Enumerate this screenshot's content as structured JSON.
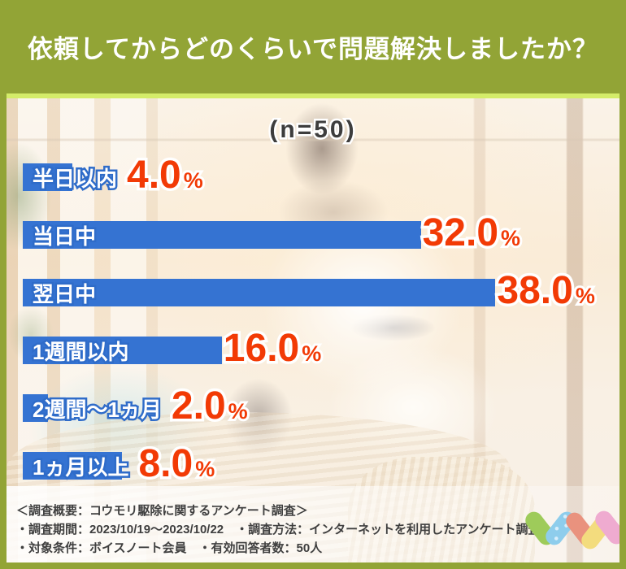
{
  "header": {
    "title": "依頼してからどのくらいで問題解決しましたか？"
  },
  "chart_data": {
    "type": "bar",
    "orientation": "horizontal",
    "title": "依頼してからどのくらいで問題解決しましたか？",
    "sample_size_label": "(n=50)",
    "n": 50,
    "categories": [
      "半日以内",
      "当日中",
      "翌日中",
      "1週間以内",
      "2週間〜1ヵ月",
      "1ヵ月以上"
    ],
    "values": [
      4.0,
      32.0,
      38.0,
      16.0,
      2.0,
      8.0
    ],
    "value_labels": [
      "4.0",
      "32.0",
      "38.0",
      "16.0",
      "2.0",
      "8.0"
    ],
    "unit": "%",
    "xlim": [
      0,
      40
    ],
    "grid": false,
    "legend": "none",
    "bar_color": "#3573d2",
    "value_color": "#f23a05",
    "label_text_color": "#ffffff"
  },
  "footer": {
    "line1": "＜調査概要：コウモリ駆除に関するアンケート調査＞",
    "line2": "・調査期間：2023/10/19～2023/10/22　・調査方法：インターネットを利用したアンケート調査",
    "line3": "・対象条件：ボイスノート会員　・有効回答者数：50人"
  },
  "logo": {
    "name": "voicenote-checkmarks-logo",
    "stroke_colors": [
      "#9ecb5a",
      "#8ecdec",
      "#e9927e",
      "#f3dc7e",
      "#efabd0"
    ]
  },
  "colors": {
    "frame_green": "#92a436",
    "accent_strip": "#d4ec69",
    "bar_blue": "#3573d2",
    "bar_outline_blue": "#2f6cc9",
    "value_orange": "#f23a05",
    "footer_text": "#3f3f3f",
    "n_label_text": "#3d3d3d"
  }
}
